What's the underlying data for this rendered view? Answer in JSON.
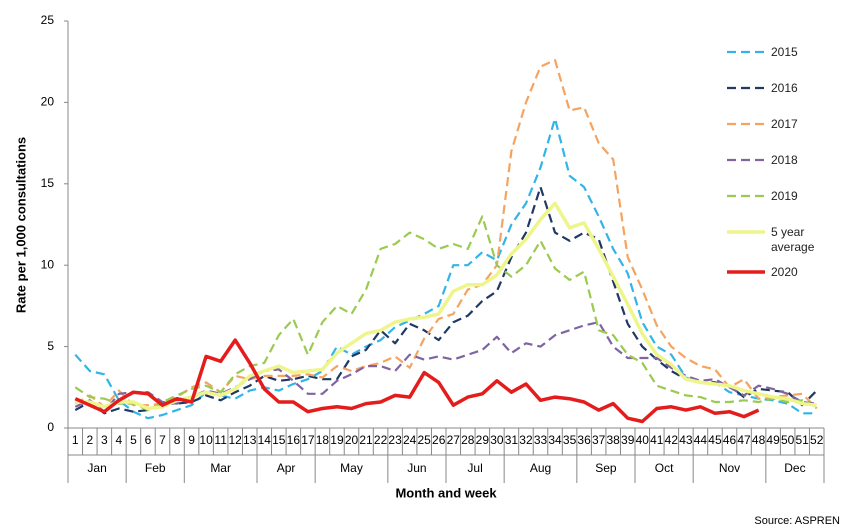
{
  "chart_data": {
    "type": "line",
    "y_label": "Rate per 1,000 consultations",
    "x_label": "Month and week",
    "source": "Source: ASPREN",
    "ylim": [
      0,
      25
    ],
    "yticks": [
      0,
      5,
      10,
      15,
      20,
      25
    ],
    "grid": false,
    "legend": "right",
    "categories": [
      1,
      2,
      3,
      4,
      5,
      6,
      7,
      8,
      9,
      10,
      11,
      12,
      13,
      14,
      15,
      16,
      17,
      18,
      19,
      20,
      21,
      22,
      23,
      24,
      25,
      26,
      27,
      28,
      29,
      30,
      31,
      32,
      33,
      34,
      35,
      36,
      37,
      38,
      39,
      40,
      41,
      42,
      43,
      44,
      45,
      46,
      47,
      48,
      49,
      50,
      51,
      52
    ],
    "months": [
      "Jan",
      null,
      null,
      null,
      "Feb",
      null,
      null,
      null,
      "Mar",
      null,
      null,
      null,
      null,
      "Apr",
      null,
      null,
      null,
      "May",
      null,
      null,
      null,
      null,
      "Jun",
      null,
      null,
      null,
      "Jul",
      null,
      null,
      null,
      "Aug",
      null,
      null,
      null,
      null,
      "Sep",
      null,
      null,
      null,
      "Oct",
      null,
      null,
      null,
      "Nov",
      null,
      null,
      null,
      null,
      "Dec",
      null,
      null,
      null
    ],
    "series": [
      {
        "name": "2015",
        "color": "#33b4e8",
        "dashed": true,
        "values": [
          4.5,
          3.5,
          3.3,
          1.7,
          1.0,
          0.6,
          0.8,
          1.1,
          1.4,
          2.2,
          2.0,
          1.8,
          2.3,
          2.5,
          2.3,
          2.7,
          3.0,
          3.5,
          5.0,
          4.5,
          5.0,
          5.4,
          6.2,
          6.6,
          7.0,
          7.5,
          10.0,
          10.0,
          10.8,
          10.3,
          12.5,
          13.8,
          16.0,
          19.0,
          15.5,
          14.8,
          13.0,
          11.0,
          9.5,
          6.5,
          5.0,
          4.5,
          3.1,
          2.8,
          2.8,
          2.2,
          2.0,
          1.8,
          1.7,
          1.5,
          0.9,
          0.9
        ]
      },
      {
        "name": "2016",
        "color": "#1f3864",
        "dashed": true,
        "values": [
          1.1,
          1.6,
          0.9,
          1.2,
          1.0,
          1.1,
          1.5,
          1.5,
          1.6,
          2.0,
          1.7,
          2.2,
          2.6,
          3.2,
          2.9,
          3.0,
          3.2,
          3.0,
          3.0,
          4.4,
          4.8,
          6.0,
          5.2,
          6.4,
          6.0,
          5.4,
          6.5,
          6.9,
          7.8,
          8.4,
          10.5,
          12.0,
          14.8,
          12.0,
          11.5,
          12.0,
          11.6,
          9.0,
          6.4,
          5.0,
          4.2,
          3.5,
          3.0,
          2.8,
          2.8,
          2.6,
          1.9,
          2.4,
          2.3,
          2.2,
          1.4,
          2.3
        ]
      },
      {
        "name": "2017",
        "color": "#f4a460",
        "dashed": true,
        "values": [
          1.5,
          2.0,
          1.3,
          2.3,
          1.4,
          1.4,
          1.5,
          1.9,
          2.5,
          2.8,
          2.2,
          3.2,
          3.0,
          3.2,
          3.2,
          3.2,
          3.3,
          3.1,
          3.8,
          3.5,
          3.8,
          4.0,
          4.4,
          3.7,
          5.5,
          6.7,
          7.0,
          8.5,
          8.8,
          10.0,
          17.0,
          20.0,
          22.2,
          22.6,
          19.5,
          19.7,
          17.5,
          16.5,
          10.5,
          8.5,
          6.3,
          5.0,
          4.3,
          3.8,
          3.6,
          2.5,
          3.0,
          1.8,
          1.9,
          2.0,
          2.1,
          1.2
        ]
      },
      {
        "name": "2018",
        "color": "#8064a2",
        "dashed": true,
        "values": [
          1.3,
          1.7,
          1.0,
          2.1,
          2.2,
          2.2,
          1.6,
          1.5,
          1.9,
          2.3,
          2.1,
          2.5,
          3.0,
          3.5,
          3.6,
          2.9,
          2.1,
          2.1,
          2.9,
          3.3,
          3.8,
          3.8,
          3.5,
          4.5,
          4.2,
          4.4,
          4.2,
          4.5,
          4.8,
          5.6,
          4.6,
          5.2,
          5.0,
          5.7,
          6.0,
          6.3,
          6.5,
          5.0,
          4.3,
          4.3,
          4.3,
          3.7,
          3.2,
          2.9,
          3.0,
          2.5,
          2.0,
          2.6,
          2.4,
          2.1,
          1.6,
          1.5
        ]
      },
      {
        "name": "2019",
        "color": "#9bca52",
        "dashed": true,
        "values": [
          2.5,
          1.9,
          1.8,
          1.5,
          1.5,
          1.1,
          1.6,
          2.0,
          2.4,
          2.6,
          2.2,
          3.3,
          3.8,
          4.0,
          5.7,
          6.7,
          4.5,
          6.5,
          7.5,
          7.0,
          8.5,
          11.0,
          11.3,
          12.0,
          11.6,
          11.0,
          11.3,
          11.0,
          13.0,
          10.0,
          9.3,
          10.0,
          11.5,
          9.8,
          9.1,
          9.6,
          6.0,
          5.7,
          4.5,
          4.0,
          2.6,
          2.3,
          2.0,
          1.9,
          1.6,
          1.6,
          1.7,
          1.6,
          1.8,
          1.6,
          1.7,
          1.3
        ]
      },
      {
        "name": "5 year average",
        "color": "#eef58a",
        "dashed": false,
        "values": [
          1.6,
          1.6,
          1.3,
          1.6,
          1.6,
          1.2,
          1.3,
          1.7,
          1.9,
          2.2,
          2.0,
          2.4,
          3.2,
          3.5,
          3.8,
          3.4,
          3.5,
          3.6,
          4.6,
          5.2,
          5.8,
          6.0,
          6.5,
          6.7,
          6.8,
          7.0,
          8.4,
          8.8,
          8.8,
          9.4,
          10.7,
          11.6,
          12.8,
          13.8,
          12.3,
          12.6,
          11.0,
          9.3,
          7.6,
          5.8,
          4.5,
          3.9,
          3.0,
          2.8,
          2.7,
          2.6,
          2.3,
          2.1,
          1.9,
          1.8,
          1.5,
          1.4
        ]
      },
      {
        "name": "2020",
        "color": "#e41c1c",
        "dashed": false,
        "values": [
          1.8,
          1.4,
          1.0,
          1.7,
          2.2,
          2.1,
          1.4,
          1.8,
          1.6,
          4.4,
          4.1,
          5.4,
          4.0,
          2.4,
          1.6,
          1.6,
          1.0,
          1.2,
          1.3,
          1.2,
          1.5,
          1.6,
          2.0,
          1.9,
          3.4,
          2.8,
          1.4,
          1.9,
          2.1,
          2.9,
          2.2,
          2.7,
          1.7,
          1.9,
          1.8,
          1.6,
          1.1,
          1.5,
          0.6,
          0.4,
          1.2,
          1.3,
          1.1,
          1.3,
          0.9,
          1.0,
          0.7,
          1.1,
          null,
          null,
          null,
          null
        ]
      }
    ]
  }
}
